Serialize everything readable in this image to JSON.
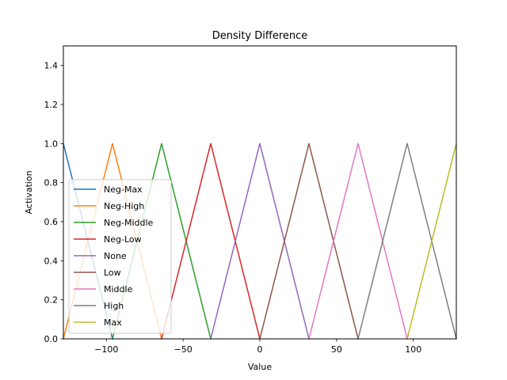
{
  "chart_data": {
    "type": "line",
    "title": "Density Difference",
    "xlabel": "Value",
    "ylabel": "Activation",
    "xlim": [
      -128,
      128
    ],
    "ylim": [
      0,
      1.5
    ],
    "grid": false,
    "legend_position": "center-left",
    "x_ticks": [
      -100,
      -50,
      0,
      50,
      100
    ],
    "x_tick_labels": [
      "−100",
      "−50",
      "0",
      "50",
      "100"
    ],
    "y_ticks": [
      0.0,
      0.2,
      0.4,
      0.6,
      0.8,
      1.0,
      1.2,
      1.4
    ],
    "y_tick_labels": [
      "0.0",
      "0.2",
      "0.4",
      "0.6",
      "0.8",
      "1.0",
      "1.2",
      "1.4"
    ],
    "series": [
      {
        "name": "Neg-Max",
        "color": "#1f77b4",
        "x": [
          -128,
          -96
        ],
        "y": [
          1,
          0
        ]
      },
      {
        "name": "Neg-High",
        "color": "#ff7f0e",
        "x": [
          -128,
          -96,
          -64
        ],
        "y": [
          0,
          1,
          0
        ]
      },
      {
        "name": "Neg-Middle",
        "color": "#2ca02c",
        "x": [
          -96,
          -64,
          -32
        ],
        "y": [
          0,
          1,
          0
        ]
      },
      {
        "name": "Neg-Low",
        "color": "#d62728",
        "x": [
          -64,
          -32,
          0
        ],
        "y": [
          0,
          1,
          0
        ]
      },
      {
        "name": "None",
        "color": "#9467bd",
        "x": [
          -32,
          0,
          32
        ],
        "y": [
          0,
          1,
          0
        ]
      },
      {
        "name": "Low",
        "color": "#8c564b",
        "x": [
          0,
          32,
          64
        ],
        "y": [
          0,
          1,
          0
        ]
      },
      {
        "name": "Middle",
        "color": "#e377c2",
        "x": [
          32,
          64,
          96
        ],
        "y": [
          0,
          1,
          0
        ]
      },
      {
        "name": "High",
        "color": "#7f7f7f",
        "x": [
          64,
          96,
          128
        ],
        "y": [
          0,
          1,
          0
        ]
      },
      {
        "name": "Max",
        "color": "#bcbd22",
        "x": [
          96,
          128
        ],
        "y": [
          0,
          1
        ]
      }
    ]
  }
}
